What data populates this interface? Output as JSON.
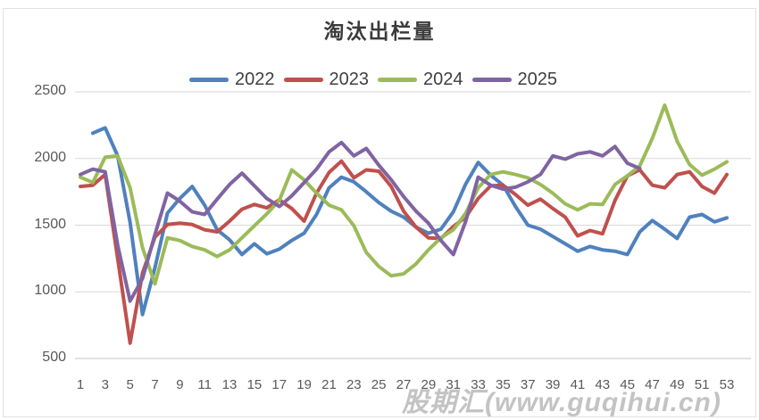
{
  "header": {
    "title": "淘汰出栏量"
  },
  "legend": {
    "position": "top",
    "items": [
      {
        "label": "2022",
        "color": "#4F81BD"
      },
      {
        "label": "2023",
        "color": "#C0504D"
      },
      {
        "label": "2024",
        "color": "#9BBB59"
      },
      {
        "label": "2025",
        "color": "#8064A2"
      }
    ]
  },
  "watermark": {
    "text": "股期汇(www.guqihui.cn)"
  },
  "colors": {
    "gridline": "#d9d9d9",
    "axis_line": "#c6c6c6",
    "tick_text": "#595959",
    "title_text": "#3b3b3b",
    "background": "#ffffff"
  },
  "chart_data": {
    "type": "line",
    "title": "淘汰出栏量",
    "xlabel": "",
    "ylabel": "",
    "grid": true,
    "legend_position": "top",
    "ylim": [
      500,
      2500
    ],
    "x_range": [
      1,
      53
    ],
    "yticks": [
      2500,
      2000,
      1500,
      1000,
      500
    ],
    "xticks": [
      1,
      3,
      5,
      7,
      9,
      11,
      13,
      15,
      17,
      19,
      21,
      23,
      25,
      27,
      29,
      31,
      33,
      35,
      37,
      39,
      41,
      43,
      45,
      47,
      49,
      51,
      53
    ],
    "x": [
      1,
      2,
      3,
      4,
      5,
      6,
      7,
      8,
      9,
      10,
      11,
      12,
      13,
      14,
      15,
      16,
      17,
      18,
      19,
      20,
      21,
      22,
      23,
      24,
      25,
      26,
      27,
      28,
      29,
      30,
      31,
      32,
      33,
      34,
      35,
      36,
      37,
      38,
      39,
      40,
      41,
      42,
      43,
      44,
      45,
      46,
      47,
      48,
      49,
      50,
      51,
      52,
      53
    ],
    "series": [
      {
        "name": "2022",
        "color": "#4F81BD",
        "values": [
          null,
          2190,
          2230,
          2020,
          1520,
          830,
          1180,
          1590,
          1700,
          1790,
          1650,
          1465,
          1390,
          1280,
          1360,
          1285,
          1320,
          1385,
          1440,
          1580,
          1780,
          1860,
          1825,
          1750,
          1670,
          1605,
          1560,
          1485,
          1440,
          1470,
          1600,
          1810,
          1970,
          1875,
          1800,
          1640,
          1500,
          1470,
          1415,
          1360,
          1305,
          1340,
          1315,
          1305,
          1280,
          1450,
          1535,
          1470,
          1400,
          1560,
          1580,
          1525,
          1555
        ]
      },
      {
        "name": "2023",
        "color": "#C0504D",
        "values": [
          1790,
          1800,
          1880,
          1250,
          615,
          1140,
          1410,
          1505,
          1515,
          1505,
          1465,
          1450,
          1530,
          1620,
          1655,
          1630,
          1690,
          1625,
          1530,
          1740,
          1895,
          1980,
          1855,
          1915,
          1905,
          1790,
          1605,
          1485,
          1405,
          1400,
          1490,
          1560,
          1700,
          1795,
          1800,
          1730,
          1650,
          1695,
          1625,
          1560,
          1420,
          1460,
          1435,
          1685,
          1870,
          1915,
          1800,
          1780,
          1880,
          1900,
          1790,
          1740,
          1880
        ]
      },
      {
        "name": "2024",
        "color": "#9BBB59",
        "values": [
          1860,
          1820,
          2010,
          2020,
          1780,
          1330,
          1060,
          1405,
          1385,
          1340,
          1315,
          1265,
          1315,
          1405,
          1495,
          1585,
          1685,
          1915,
          1840,
          1740,
          1650,
          1615,
          1495,
          1295,
          1190,
          1120,
          1135,
          1210,
          1315,
          1405,
          1465,
          1590,
          1780,
          1880,
          1900,
          1880,
          1855,
          1805,
          1740,
          1660,
          1615,
          1660,
          1655,
          1805,
          1870,
          1945,
          2150,
          2400,
          2130,
          1955,
          1875,
          1920,
          1975
        ]
      },
      {
        "name": "2025",
        "color": "#8064A2",
        "values": [
          1880,
          1920,
          1900,
          1350,
          930,
          1100,
          1430,
          1740,
          1680,
          1600,
          1580,
          1695,
          1805,
          1890,
          1795,
          1700,
          1640,
          1720,
          1820,
          1920,
          2050,
          2120,
          2020,
          2075,
          1950,
          1840,
          1715,
          1605,
          1515,
          1385,
          1280,
          1530,
          1860,
          1800,
          1770,
          1785,
          1825,
          1880,
          2020,
          1995,
          2035,
          2050,
          2020,
          2090,
          1965,
          1925,
          null,
          null,
          null,
          null,
          null,
          null,
          null
        ]
      }
    ]
  }
}
